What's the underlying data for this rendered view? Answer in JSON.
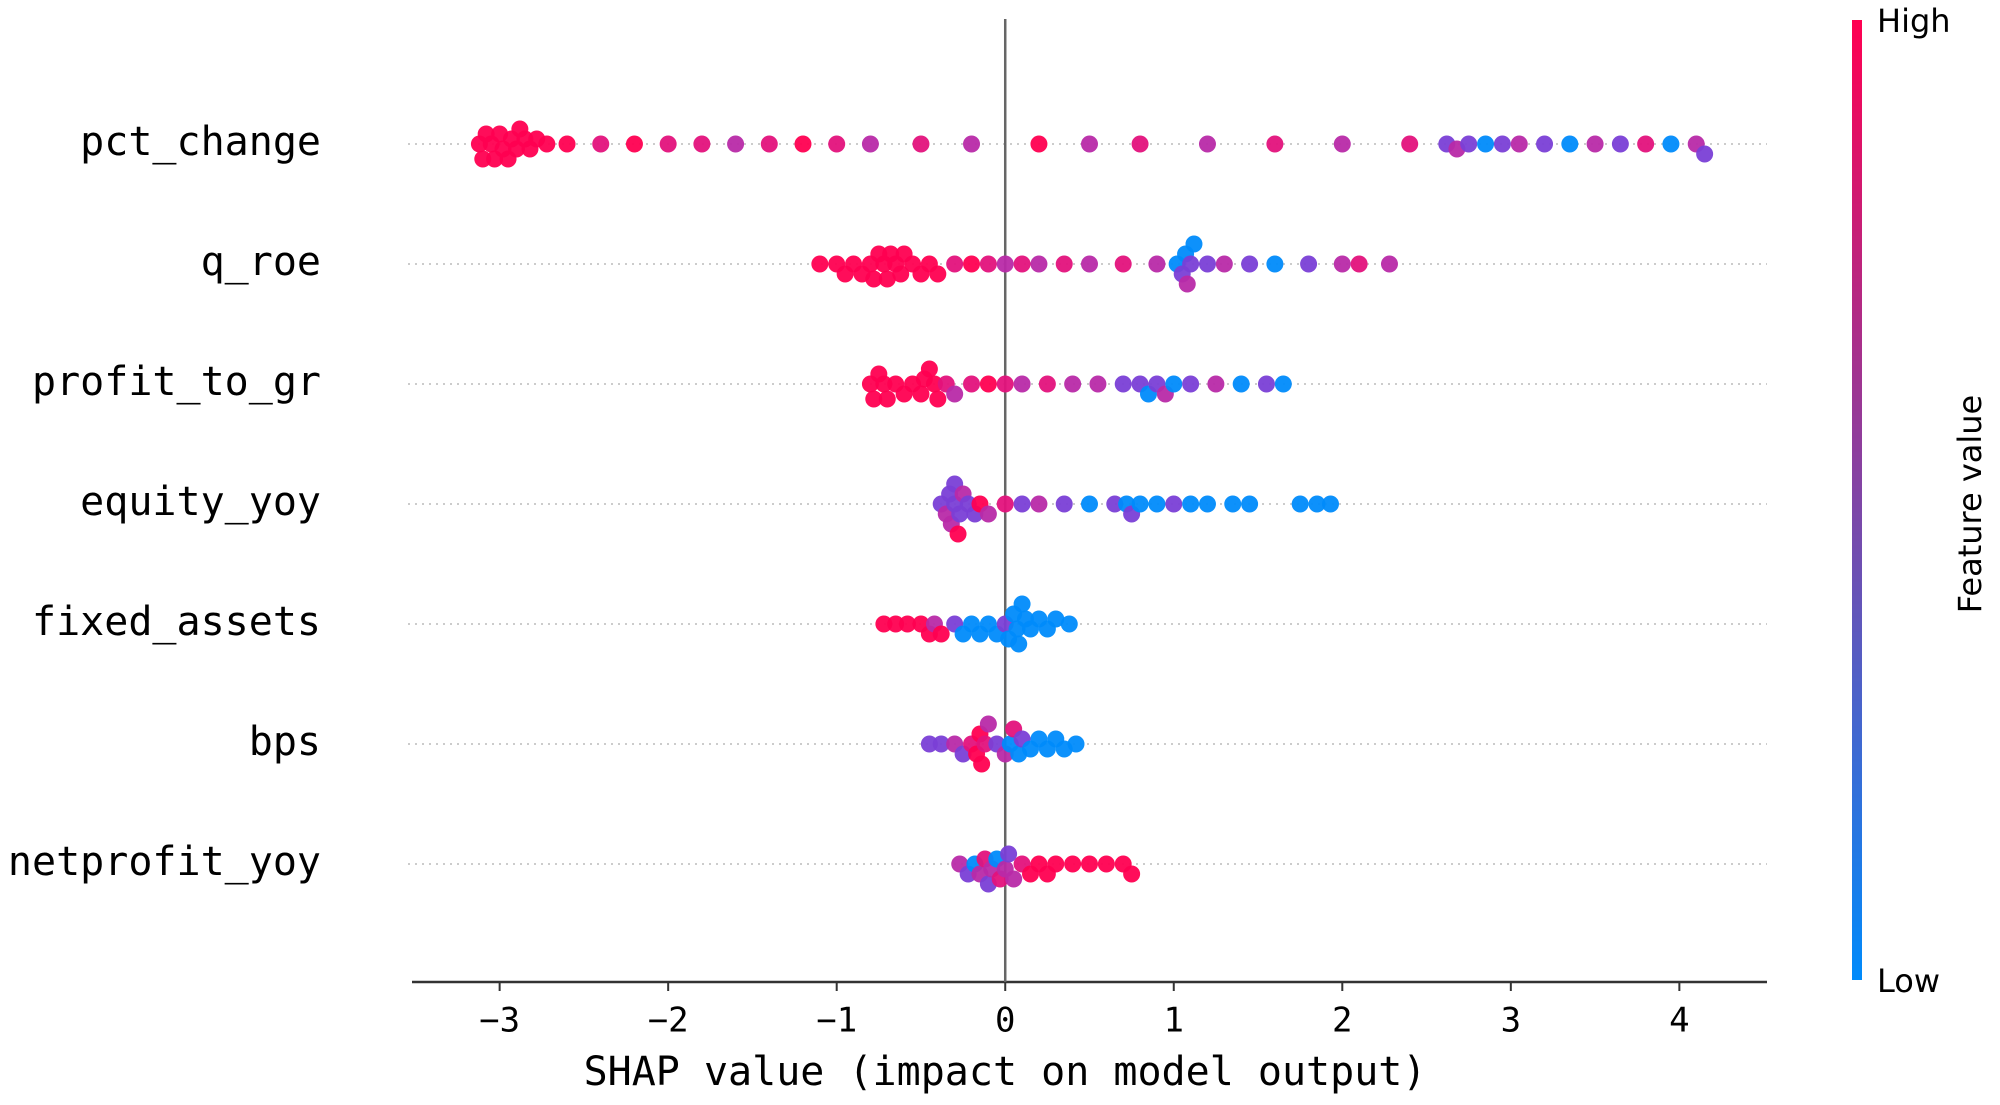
{
  "chart_data": {
    "type": "beeswarm",
    "xlabel": "SHAP value (impact on model output)",
    "xlim": [
      -3.52,
      4.52
    ],
    "xticks": [
      {
        "value": -3,
        "label": "−3"
      },
      {
        "value": -2,
        "label": "−2"
      },
      {
        "value": -1,
        "label": "−1"
      },
      0,
      1,
      2,
      3,
      4
    ],
    "colorbar": {
      "label": "Feature value",
      "high_label": "High",
      "low_label": "Low",
      "high_color": "#ff0051",
      "low_color": "#008bfb"
    },
    "series": [
      {
        "name": "pct_change",
        "values": [
          -3.12,
          -3.1,
          -3.08,
          -3.05,
          -3.03,
          -3.0,
          -2.98,
          -2.95,
          -2.93,
          -2.9,
          -2.88,
          -2.85,
          -2.82,
          -2.78,
          -2.72,
          -2.6,
          -2.4,
          -2.2,
          -2.0,
          -1.8,
          -1.6,
          -1.4,
          -1.2,
          -1.0,
          -0.8,
          -0.5,
          -0.2,
          0.2,
          0.5,
          0.8,
          1.2,
          1.6,
          2.0,
          2.4,
          2.62,
          2.68,
          2.75,
          2.85,
          2.95,
          3.05,
          3.2,
          3.35,
          3.5,
          3.65,
          3.8,
          3.95,
          4.1,
          4.15
        ],
        "colors": [
          "#ff0051",
          "#ff0051",
          "#ff0051",
          "#ff0051",
          "#ff0051",
          "#ff0051",
          "#ff0051",
          "#ff0051",
          "#ff0051",
          "#ff0051",
          "#ff0051",
          "#ff0051",
          "#ff0051",
          "#ff0051",
          "#ff0051",
          "#ff0051",
          "#e3127c",
          "#ff0051",
          "#e3127c",
          "#e3127c",
          "#b82aa8",
          "#e3127c",
          "#ff0051",
          "#e3127c",
          "#b82aa8",
          "#e3127c",
          "#b82aa8",
          "#ff0051",
          "#b82aa8",
          "#e3127c",
          "#b82aa8",
          "#e3127c",
          "#b82aa8",
          "#e3127c",
          "#7a3fd6",
          "#b82aa8",
          "#7a3fd6",
          "#008bfb",
          "#7a3fd6",
          "#b82aa8",
          "#7a3fd6",
          "#008bfb",
          "#b82aa8",
          "#7a3fd6",
          "#e3127c",
          "#008bfb",
          "#b82aa8",
          "#7a3fd6"
        ]
      },
      {
        "name": "q_roe",
        "values": [
          -1.1,
          -1.0,
          -0.95,
          -0.9,
          -0.85,
          -0.8,
          -0.78,
          -0.75,
          -0.72,
          -0.7,
          -0.68,
          -0.65,
          -0.62,
          -0.6,
          -0.55,
          -0.5,
          -0.45,
          -0.4,
          -0.3,
          -0.2,
          -0.1,
          0.0,
          0.1,
          0.2,
          0.35,
          0.5,
          0.7,
          0.9,
          1.02,
          1.05,
          1.07,
          1.08,
          1.1,
          1.12,
          1.2,
          1.3,
          1.45,
          1.6,
          1.8,
          2.0,
          2.1,
          2.28
        ],
        "colors": [
          "#ff0051",
          "#ff0051",
          "#ff0051",
          "#ff0051",
          "#ff0051",
          "#ff0051",
          "#ff0051",
          "#ff0051",
          "#ff0051",
          "#ff0051",
          "#ff0051",
          "#ff0051",
          "#ff0051",
          "#ff0051",
          "#ff0051",
          "#ff0051",
          "#ff0051",
          "#ff0051",
          "#e3127c",
          "#ff0051",
          "#e3127c",
          "#b82aa8",
          "#e3127c",
          "#b82aa8",
          "#e3127c",
          "#b82aa8",
          "#e3127c",
          "#b82aa8",
          "#008bfb",
          "#7a3fd6",
          "#008bfb",
          "#b82aa8",
          "#7a3fd6",
          "#008bfb",
          "#7a3fd6",
          "#b82aa8",
          "#7a3fd6",
          "#008bfb",
          "#7a3fd6",
          "#b82aa8",
          "#e3127c",
          "#b82aa8"
        ]
      },
      {
        "name": "profit_to_gr",
        "values": [
          -0.8,
          -0.78,
          -0.75,
          -0.72,
          -0.7,
          -0.65,
          -0.6,
          -0.55,
          -0.5,
          -0.48,
          -0.45,
          -0.42,
          -0.4,
          -0.35,
          -0.3,
          -0.2,
          -0.1,
          0.0,
          0.1,
          0.25,
          0.4,
          0.55,
          0.7,
          0.8,
          0.85,
          0.9,
          0.95,
          1.0,
          1.1,
          1.25,
          1.4,
          1.55,
          1.65
        ],
        "colors": [
          "#ff0051",
          "#ff0051",
          "#ff0051",
          "#ff0051",
          "#ff0051",
          "#ff0051",
          "#ff0051",
          "#ff0051",
          "#ff0051",
          "#ff0051",
          "#ff0051",
          "#ff0051",
          "#ff0051",
          "#e3127c",
          "#b82aa8",
          "#e3127c",
          "#ff0051",
          "#e3127c",
          "#b82aa8",
          "#e3127c",
          "#b82aa8",
          "#b82aa8",
          "#7a3fd6",
          "#7a3fd6",
          "#008bfb",
          "#7a3fd6",
          "#b82aa8",
          "#008bfb",
          "#7a3fd6",
          "#b82aa8",
          "#008bfb",
          "#7a3fd6",
          "#008bfb"
        ]
      },
      {
        "name": "equity_yoy",
        "values": [
          -0.38,
          -0.35,
          -0.33,
          -0.32,
          -0.3,
          -0.3,
          -0.28,
          -0.27,
          -0.25,
          -0.22,
          -0.18,
          -0.15,
          -0.1,
          0.0,
          0.1,
          0.2,
          0.35,
          0.5,
          0.65,
          0.72,
          0.75,
          0.8,
          0.9,
          1.0,
          1.1,
          1.2,
          1.35,
          1.45,
          1.75,
          1.85,
          1.93
        ],
        "colors": [
          "#7a3fd6",
          "#b82aa8",
          "#7a3fd6",
          "#b82aa8",
          "#7a3fd6",
          "#7a3fd6",
          "#ff0051",
          "#7a3fd6",
          "#b82aa8",
          "#7a3fd6",
          "#7a3fd6",
          "#ff0051",
          "#b82aa8",
          "#e3127c",
          "#7a3fd6",
          "#b82aa8",
          "#7a3fd6",
          "#008bfb",
          "#7a3fd6",
          "#008bfb",
          "#7a3fd6",
          "#008bfb",
          "#008bfb",
          "#7a3fd6",
          "#008bfb",
          "#008bfb",
          "#008bfb",
          "#008bfb",
          "#008bfb",
          "#008bfb",
          "#008bfb"
        ]
      },
      {
        "name": "fixed_assets",
        "values": [
          -0.72,
          -0.65,
          -0.58,
          -0.5,
          -0.45,
          -0.42,
          -0.38,
          -0.3,
          -0.25,
          -0.2,
          -0.15,
          -0.1,
          -0.05,
          0.0,
          0.02,
          0.05,
          0.07,
          0.08,
          0.1,
          0.12,
          0.15,
          0.2,
          0.25,
          0.3,
          0.38
        ],
        "colors": [
          "#ff0051",
          "#ff0051",
          "#ff0051",
          "#ff0051",
          "#ff0051",
          "#b82aa8",
          "#ff0051",
          "#7a3fd6",
          "#008bfb",
          "#008bfb",
          "#008bfb",
          "#008bfb",
          "#008bfb",
          "#7a3fd6",
          "#008bfb",
          "#008bfb",
          "#008bfb",
          "#008bfb",
          "#008bfb",
          "#008bfb",
          "#008bfb",
          "#008bfb",
          "#008bfb",
          "#008bfb",
          "#008bfb"
        ]
      },
      {
        "name": "bps",
        "values": [
          -0.45,
          -0.38,
          -0.3,
          -0.25,
          -0.2,
          -0.17,
          -0.15,
          -0.14,
          -0.12,
          -0.1,
          -0.05,
          0.0,
          0.03,
          0.05,
          0.08,
          0.1,
          0.15,
          0.2,
          0.25,
          0.3,
          0.35,
          0.42
        ],
        "colors": [
          "#7a3fd6",
          "#7a3fd6",
          "#b82aa8",
          "#7a3fd6",
          "#e3127c",
          "#ff0051",
          "#ff0051",
          "#ff0051",
          "#e3127c",
          "#b82aa8",
          "#7a3fd6",
          "#b82aa8",
          "#008bfb",
          "#e3127c",
          "#008bfb",
          "#7a3fd6",
          "#008bfb",
          "#008bfb",
          "#008bfb",
          "#008bfb",
          "#008bfb",
          "#008bfb"
        ]
      },
      {
        "name": "netprofit_yoy",
        "values": [
          -0.27,
          -0.22,
          -0.18,
          -0.15,
          -0.12,
          -0.1,
          -0.08,
          -0.05,
          -0.03,
          0.0,
          0.02,
          0.05,
          0.1,
          0.15,
          0.2,
          0.25,
          0.3,
          0.4,
          0.5,
          0.6,
          0.7,
          0.75
        ],
        "colors": [
          "#b82aa8",
          "#7a3fd6",
          "#008bfb",
          "#b82aa8",
          "#e3127c",
          "#7a3fd6",
          "#b82aa8",
          "#008bfb",
          "#e3127c",
          "#b82aa8",
          "#7a3fd6",
          "#b82aa8",
          "#e3127c",
          "#ff0051",
          "#ff0051",
          "#ff0051",
          "#ff0051",
          "#ff0051",
          "#ff0051",
          "#ff0051",
          "#ff0051",
          "#ff0051"
        ]
      }
    ]
  }
}
